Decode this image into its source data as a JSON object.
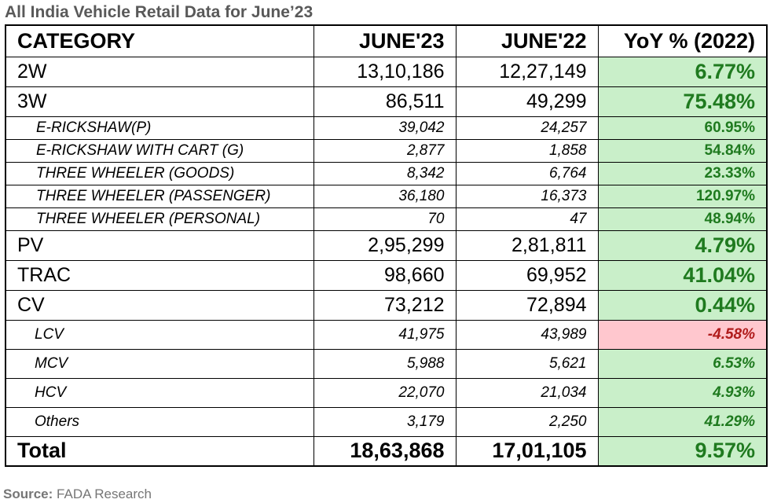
{
  "title": "All India Vehicle Retail Data for June’23",
  "headers": [
    "CATEGORY",
    "JUNE'23",
    "JUNE'22",
    "YoY % (2022)"
  ],
  "rows": [
    {
      "category": "2W",
      "june23": "13,10,186",
      "june22": "12,27,149",
      "yoy": "6.77%",
      "level": "main"
    },
    {
      "category": "3W",
      "june23": "86,511",
      "june22": "49,299",
      "yoy": "75.48%",
      "level": "main"
    },
    {
      "category": "E-RICKSHAW(P)",
      "june23": "39,042",
      "june22": "24,257",
      "yoy": "60.95%",
      "level": "sub"
    },
    {
      "category": "E-RICKSHAW WITH CART (G)",
      "june23": "2,877",
      "june22": "1,858",
      "yoy": "54.84%",
      "level": "sub"
    },
    {
      "category": "THREE WHEELER (GOODS)",
      "june23": "8,342",
      "june22": "6,764",
      "yoy": "23.33%",
      "level": "sub"
    },
    {
      "category": "THREE WHEELER (PASSENGER)",
      "june23": "36,180",
      "june22": "16,373",
      "yoy": "120.97%",
      "level": "sub"
    },
    {
      "category": "THREE WHEELER (PERSONAL)",
      "june23": "70",
      "june22": "47",
      "yoy": "48.94%",
      "level": "sub"
    },
    {
      "category": "PV",
      "june23": "2,95,299",
      "june22": "2,81,811",
      "yoy": "4.79%",
      "level": "main"
    },
    {
      "category": "TRAC",
      "june23": "98,660",
      "june22": "69,952",
      "yoy": "41.04%",
      "level": "main"
    },
    {
      "category": "CV",
      "june23": "73,212",
      "june22": "72,894",
      "yoy": "0.44%",
      "level": "main"
    },
    {
      "category": "LCV",
      "june23": "41,975",
      "june22": "43,989",
      "yoy": "-4.58%",
      "level": "sub2"
    },
    {
      "category": "MCV",
      "june23": "5,988",
      "june22": "5,621",
      "yoy": "6.53%",
      "level": "sub2"
    },
    {
      "category": "HCV",
      "june23": "22,070",
      "june22": "21,034",
      "yoy": "4.93%",
      "level": "sub2"
    },
    {
      "category": "Others",
      "june23": "3,179",
      "june22": "2,250",
      "yoy": "41.29%",
      "level": "sub2"
    }
  ],
  "total": {
    "category": "Total",
    "june23": "18,63,868",
    "june22": "17,01,105",
    "yoy": "9.57%"
  },
  "colors": {
    "positive_text": "#1f7a1f",
    "positive_fill": "#c9efc9",
    "negative_text": "#b01c1c",
    "negative_fill": "#ffc7ce",
    "title_text": "#595959"
  },
  "source": {
    "label": "Source:",
    "text": "FADA Research"
  }
}
